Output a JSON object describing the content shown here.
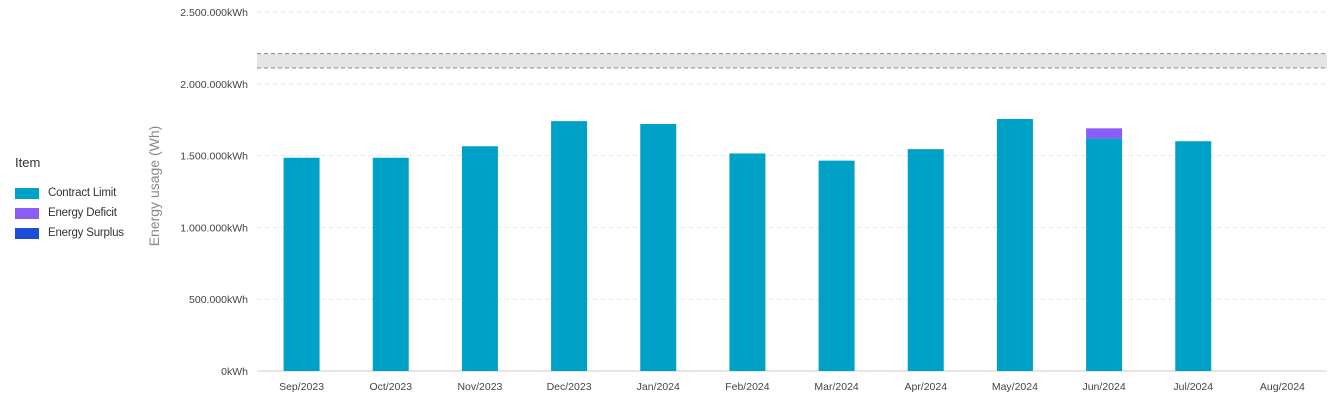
{
  "legend": {
    "title": "Item",
    "items": [
      {
        "label": "Contract Limit",
        "color": "#00A1C7"
      },
      {
        "label": "Energy Deficit",
        "color": "#8B5CF6"
      },
      {
        "label": "Energy Surplus",
        "color": "#1D4ED8"
      }
    ]
  },
  "chart_data": {
    "type": "bar",
    "stacked": true,
    "ylabel": "Energy usage (Wh)",
    "xlabel": "",
    "ylim": [
      0,
      2500000
    ],
    "yticks": [
      0,
      500000,
      1000000,
      1500000,
      2000000,
      2500000
    ],
    "ytick_labels": [
      "0kWh",
      "500.000kWh",
      "1.000.000kWh",
      "1.500.000kWh",
      "2.000.000kWh",
      "2.500.000kWh"
    ],
    "categories": [
      "Sep/2023",
      "Oct/2023",
      "Nov/2023",
      "Dec/2023",
      "Jan/2024",
      "Feb/2024",
      "Mar/2024",
      "Apr/2024",
      "May/2024",
      "Jun/2024",
      "Jul/2024",
      "Aug/2024"
    ],
    "series": [
      {
        "name": "Contract Limit",
        "color": "#00A1C7",
        "values": [
          1485000,
          1485000,
          1565000,
          1740000,
          1720000,
          1515000,
          1465000,
          1545000,
          1755000,
          1620000,
          1600000,
          0
        ]
      },
      {
        "name": "Energy Deficit",
        "color": "#8B5CF6",
        "values": [
          0,
          0,
          0,
          0,
          0,
          0,
          0,
          0,
          0,
          70000,
          0,
          0
        ]
      },
      {
        "name": "Energy Surplus",
        "color": "#1D4ED8",
        "values": [
          0,
          0,
          0,
          0,
          0,
          0,
          0,
          0,
          0,
          0,
          0,
          0
        ]
      }
    ],
    "reference_band": {
      "low": 2110000,
      "high": 2210000,
      "color": "#E5E5E5"
    },
    "grid": true,
    "legend_position": "left"
  }
}
